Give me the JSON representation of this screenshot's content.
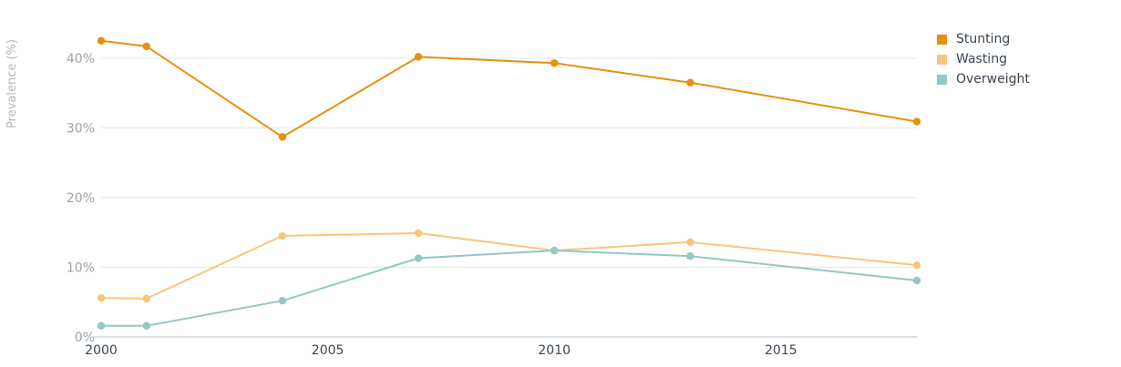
{
  "chart_data": {
    "type": "line",
    "ylabel": "Prevalence (%)",
    "xlabel": "",
    "x": [
      2000,
      2001,
      2004,
      2007,
      2010,
      2013,
      2018
    ],
    "xlim": [
      2000,
      2018
    ],
    "ylim": [
      0,
      46
    ],
    "x_ticks": [
      2000,
      2005,
      2010,
      2015
    ],
    "y_ticks": [
      0,
      10,
      20,
      30,
      40
    ],
    "y_tick_labels": [
      "0%",
      "10%",
      "20%",
      "30%",
      "40%"
    ],
    "grid": "horizontal",
    "legend_position": "top-right",
    "series": [
      {
        "name": "Stunting",
        "color": "#e8900c",
        "values": [
          42.5,
          41.7,
          28.7,
          40.2,
          39.3,
          36.5,
          30.9
        ]
      },
      {
        "name": "Wasting",
        "color": "#f8c67a",
        "values": [
          5.6,
          5.5,
          14.5,
          14.9,
          12.4,
          13.6,
          10.3
        ]
      },
      {
        "name": "Overweight",
        "color": "#93c8c6",
        "values": [
          1.6,
          1.6,
          5.2,
          11.3,
          12.4,
          11.6,
          8.1
        ]
      }
    ]
  }
}
